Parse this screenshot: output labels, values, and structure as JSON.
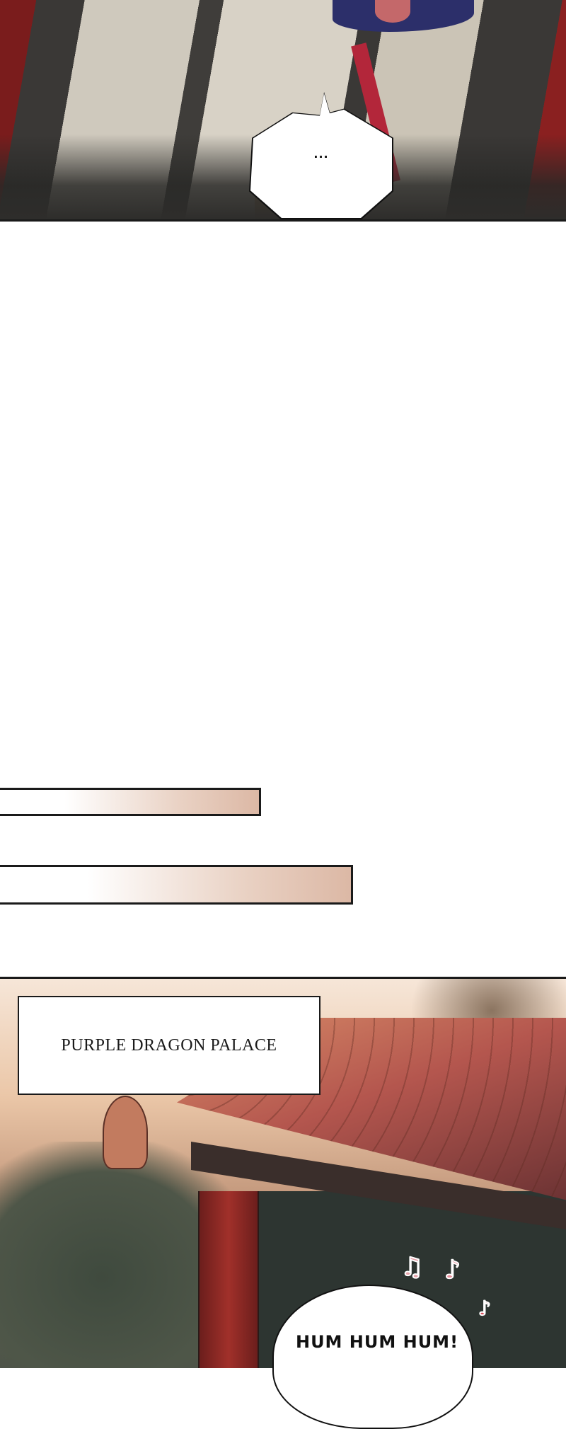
{
  "panels": [
    {
      "id": "panel-1",
      "speech_bubble": {
        "text": "..."
      }
    },
    {
      "id": "panel-2",
      "caption": "PURPLE DRAGON PALACE",
      "speech_bubble": {
        "text": "HUM HUM HUM!"
      },
      "music_notes": [
        "♫",
        "♪",
        "♪"
      ]
    }
  ],
  "colors": {
    "bar_gradient_end": "#dcb8a5",
    "roof": "#b4564e",
    "pillar": "#a1302a",
    "note": "#e7a4ab"
  }
}
